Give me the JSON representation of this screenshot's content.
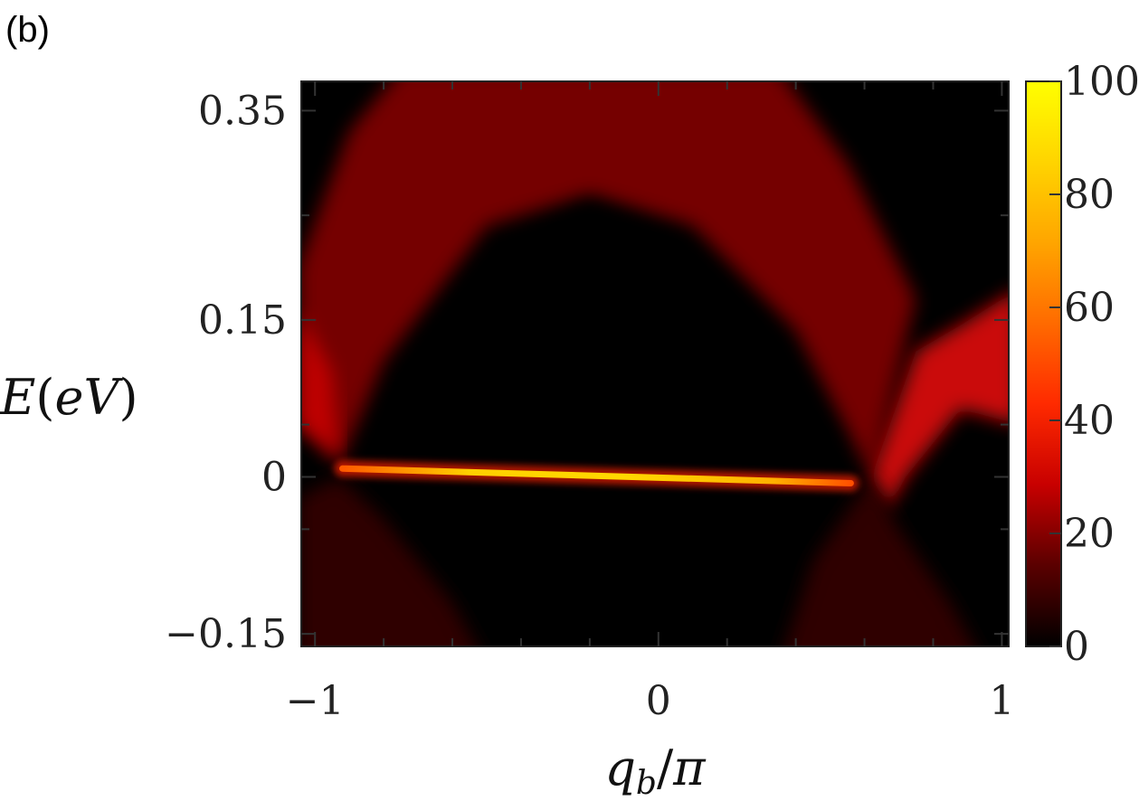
{
  "panel_label": "(b)",
  "chart_data": {
    "type": "heatmap",
    "title": "",
    "xlabel": "q_b/π",
    "ylabel": "E(eV)",
    "xlim": [
      -1.04,
      1.02
    ],
    "ylim": [
      -0.162,
      0.378
    ],
    "x_ticks": [
      -1,
      0,
      1
    ],
    "x_tick_labels": [
      "−1",
      "0",
      "1"
    ],
    "x_minor_ticks": [
      -0.8,
      -0.6,
      -0.4,
      -0.2,
      0.2,
      0.4,
      0.6,
      0.8
    ],
    "y_ticks": [
      0.35,
      0.15,
      0,
      -0.15
    ],
    "y_tick_labels": [
      "0.35",
      "0.15",
      "0",
      "−0.15"
    ],
    "y_minor_ticks": [
      0.25,
      0.05,
      -0.05
    ],
    "colorbar": {
      "range": [
        0,
        100
      ],
      "ticks": [
        0,
        20,
        40,
        60,
        80,
        100
      ],
      "tick_labels": [
        "0",
        "20",
        "40",
        "60",
        "80",
        "100"
      ],
      "colormap": [
        "#000000",
        "#5a0000",
        "#c80000",
        "#ff2a00",
        "#ff6a00",
        "#ffa500",
        "#ffd400",
        "#ffff00"
      ]
    },
    "features": [
      {
        "name": "flat band",
        "q_range": [
          -0.92,
          0.56
        ],
        "energy_eV": [
          0.008,
          -0.006
        ],
        "intensity": 100
      },
      {
        "name": "upper band",
        "apex_q": -0.2,
        "apex_energy_eV": 0.29,
        "edge_energy_eV_at_q_-1": 0.06,
        "intensity": 20
      },
      {
        "name": "lower band",
        "intensity": 5
      },
      {
        "name": "band crossing",
        "q": 0.9,
        "energy_eV": 0.105,
        "intensity": 30
      }
    ],
    "grid": false,
    "legend": "colorbar-right"
  }
}
